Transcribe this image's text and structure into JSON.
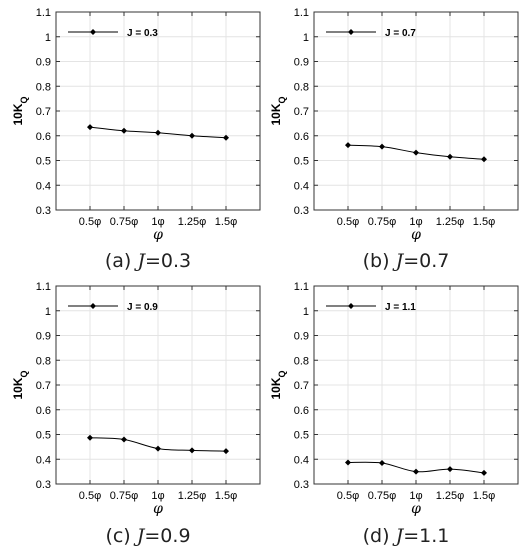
{
  "figure": {
    "panels": [
      {
        "caption_prefix": "(a)",
        "caption_var": "J",
        "caption_value": "=0.3"
      },
      {
        "caption_prefix": "(b)",
        "caption_var": "J",
        "caption_value": "=0.7"
      },
      {
        "caption_prefix": "(c)",
        "caption_var": "J",
        "caption_value": "=0.9"
      },
      {
        "caption_prefix": "(d)",
        "caption_var": "J",
        "caption_value": "=1.1"
      }
    ]
  },
  "chart_data": [
    {
      "type": "line",
      "title": "",
      "xlabel": "φ",
      "ylabel": "10K_Q",
      "categories": [
        "0.5φ",
        "0.75φ",
        "1φ",
        "1.25φ",
        "1.5φ"
      ],
      "x": [
        0.5,
        0.75,
        1.0,
        1.25,
        1.5
      ],
      "xlim": [
        0.25,
        1.75
      ],
      "ylim": [
        0.3,
        1.1
      ],
      "yticks": [
        "0.3",
        "0.4",
        "0.5",
        "0.6",
        "0.7",
        "0.8",
        "0.9",
        "1",
        "1.1"
      ],
      "grid": true,
      "legend_position": "top-left",
      "series": [
        {
          "name": "J = 0.3",
          "values": [
            0.635,
            0.62,
            0.612,
            0.6,
            0.592
          ]
        }
      ]
    },
    {
      "type": "line",
      "title": "",
      "xlabel": "φ",
      "ylabel": "10K_Q",
      "categories": [
        "0.5φ",
        "0.75φ",
        "1φ",
        "1.25φ",
        "1.5φ"
      ],
      "x": [
        0.5,
        0.75,
        1.0,
        1.25,
        1.5
      ],
      "xlim": [
        0.25,
        1.75
      ],
      "ylim": [
        0.3,
        1.1
      ],
      "yticks": [
        "0.3",
        "0.4",
        "0.5",
        "0.6",
        "0.7",
        "0.8",
        "0.9",
        "1",
        "1.1"
      ],
      "grid": true,
      "legend_position": "top-left",
      "series": [
        {
          "name": "J = 0.7",
          "values": [
            0.562,
            0.556,
            0.532,
            0.515,
            0.505
          ]
        }
      ]
    },
    {
      "type": "line",
      "title": "",
      "xlabel": "φ",
      "ylabel": "10K_Q",
      "categories": [
        "0.5φ",
        "0.75φ",
        "1φ",
        "1.25φ",
        "1.5φ"
      ],
      "x": [
        0.5,
        0.75,
        1.0,
        1.25,
        1.5
      ],
      "xlim": [
        0.25,
        1.75
      ],
      "ylim": [
        0.3,
        1.1
      ],
      "yticks": [
        "0.3",
        "0.4",
        "0.5",
        "0.6",
        "0.7",
        "0.8",
        "0.9",
        "1",
        "1.1"
      ],
      "grid": true,
      "legend_position": "top-left",
      "series": [
        {
          "name": "J = 0.9",
          "values": [
            0.487,
            0.48,
            0.443,
            0.436,
            0.433
          ]
        }
      ]
    },
    {
      "type": "line",
      "title": "",
      "xlabel": "φ",
      "ylabel": "10K_Q",
      "categories": [
        "0.5φ",
        "0.75φ",
        "1φ",
        "1.25φ",
        "1.5φ"
      ],
      "x": [
        0.5,
        0.75,
        1.0,
        1.25,
        1.5
      ],
      "xlim": [
        0.25,
        1.75
      ],
      "ylim": [
        0.3,
        1.1
      ],
      "yticks": [
        "0.3",
        "0.4",
        "0.5",
        "0.6",
        "0.7",
        "0.8",
        "0.9",
        "1",
        "1.1"
      ],
      "grid": true,
      "legend_position": "top-left",
      "series": [
        {
          "name": "J = 1.1",
          "values": [
            0.387,
            0.385,
            0.35,
            0.36,
            0.345
          ]
        }
      ]
    }
  ]
}
